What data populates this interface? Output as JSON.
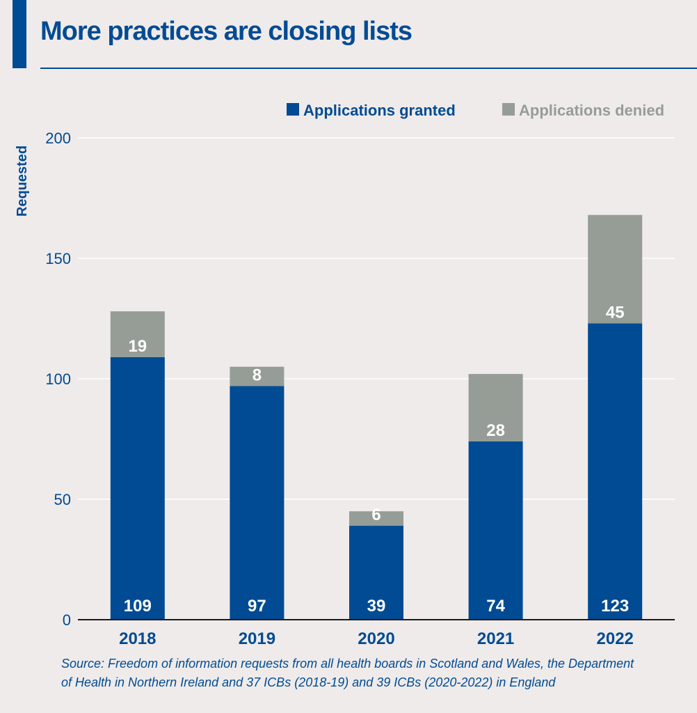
{
  "header": {
    "title": "More practices are closing lists"
  },
  "colors": {
    "granted": "#004b93",
    "denied": "#969d96",
    "text": "#004b93",
    "background": "#efebea"
  },
  "chart_data": {
    "type": "bar",
    "stacked": true,
    "title": "More practices are closing lists",
    "xlabel": "",
    "ylabel": "Requested",
    "ylim": [
      0,
      200
    ],
    "yticks": [
      0,
      50,
      100,
      150,
      200
    ],
    "grid": true,
    "legend_position": "top-right",
    "categories": [
      "2018",
      "2019",
      "2020",
      "2021",
      "2022"
    ],
    "series": [
      {
        "name": "Applications granted",
        "values": [
          109,
          97,
          39,
          74,
          123
        ]
      },
      {
        "name": "Applications denied",
        "values": [
          19,
          8,
          6,
          28,
          45
        ]
      }
    ]
  },
  "source": {
    "line1": "Source: Freedom of information requests from all health boards in Scotland and Wales, the Department",
    "line2": "of Health in Northern Ireland and 37 ICBs (2018-19) and 39 ICBs (2020-2022) in England"
  }
}
